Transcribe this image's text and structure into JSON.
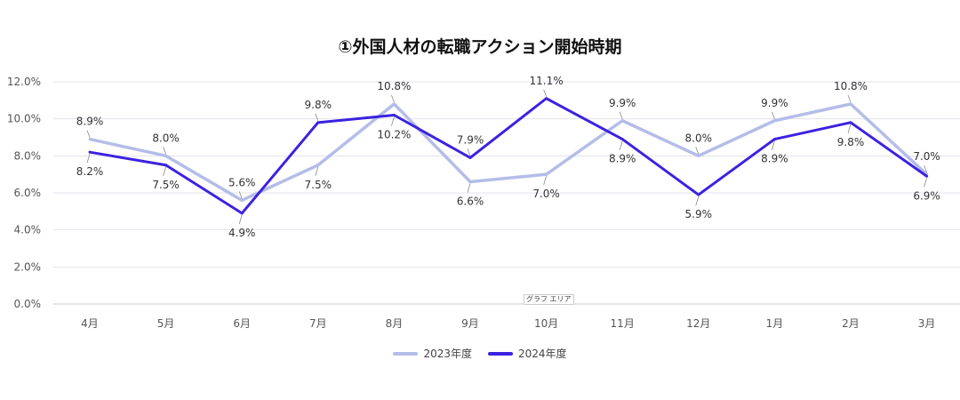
{
  "chart_data": {
    "type": "line",
    "title": "①外国人材の転職アクション開始時期",
    "categories": [
      "4月",
      "5月",
      "6月",
      "7月",
      "8月",
      "9月",
      "10月",
      "11月",
      "12月",
      "1月",
      "2月",
      "3月"
    ],
    "ylim": [
      0,
      12
    ],
    "yticks": [
      "0.0%",
      "2.0%",
      "4.0%",
      "6.0%",
      "8.0%",
      "10.0%",
      "12.0%"
    ],
    "grid": true,
    "legend": "bottom",
    "series": [
      {
        "name": "2023年度",
        "color": "#b4bde8",
        "values": [
          8.9,
          8.0,
          5.6,
          7.5,
          10.8,
          6.6,
          7.0,
          9.9,
          8.0,
          9.9,
          10.8,
          7.0
        ]
      },
      {
        "name": "2024年度",
        "color": "#3b22e0",
        "values": [
          8.2,
          7.5,
          4.9,
          9.8,
          10.2,
          7.9,
          11.1,
          8.9,
          5.9,
          8.9,
          9.8,
          6.9
        ]
      }
    ],
    "tooltip": "グラフ エリア"
  }
}
